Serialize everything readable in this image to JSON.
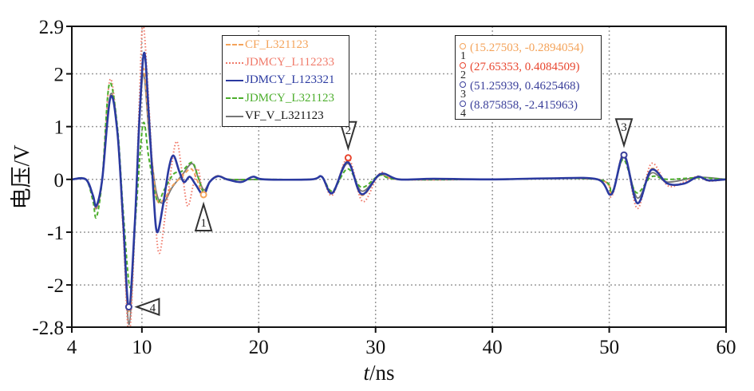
{
  "chart_data": {
    "type": "line",
    "xlabel_italic": "t",
    "xlabel_rest": "/ns",
    "ylabel": "电压/V",
    "xlim": [
      4,
      60
    ],
    "ylim": [
      -2.8,
      2.9
    ],
    "xticks": [
      4,
      10,
      20,
      30,
      40,
      50,
      60
    ],
    "yticks": [
      2.9,
      2,
      1,
      0,
      -1,
      -2,
      -2.8
    ],
    "grid": true,
    "legend_position": "top-center",
    "series": [
      {
        "name": "CF_L321123",
        "color": "#f4a35a",
        "style": "dashed",
        "points": [
          [
            4,
            0
          ],
          [
            5.2,
            0
          ],
          [
            5.8,
            -0.3
          ],
          [
            6.1,
            -0.52
          ],
          [
            6.6,
            0
          ],
          [
            7.3,
            1.58
          ],
          [
            7.9,
            0.9
          ],
          [
            8.4,
            -0.9
          ],
          [
            8.88,
            -2.5
          ],
          [
            9.4,
            -0.8
          ],
          [
            9.8,
            1.2
          ],
          [
            10.15,
            2.1
          ],
          [
            10.6,
            1.0
          ],
          [
            11.2,
            -0.3
          ],
          [
            11.8,
            -0.4
          ],
          [
            12.5,
            -0.15
          ],
          [
            13.4,
            0.05
          ],
          [
            14.2,
            0.2
          ],
          [
            14.7,
            0.0
          ],
          [
            15.27,
            -0.29
          ],
          [
            15.8,
            -0.05
          ],
          [
            16.5,
            0.07
          ],
          [
            17.3,
            0
          ],
          [
            18.5,
            -0.04
          ],
          [
            19.5,
            0.05
          ],
          [
            20.5,
            0
          ],
          [
            24.5,
            0
          ],
          [
            25.4,
            0.05
          ],
          [
            26.3,
            -0.26
          ],
          [
            27.6,
            0.35
          ],
          [
            28.8,
            -0.3
          ],
          [
            30.4,
            0.1
          ],
          [
            32,
            0
          ],
          [
            40,
            0
          ],
          [
            49,
            0
          ],
          [
            50.2,
            -0.28
          ],
          [
            51.26,
            0.45
          ],
          [
            52.4,
            -0.45
          ],
          [
            53.6,
            0.2
          ],
          [
            55,
            -0.08
          ],
          [
            56.4,
            -0.08
          ],
          [
            57.6,
            0.05
          ],
          [
            58.5,
            -0.02
          ],
          [
            60,
            0
          ]
        ]
      },
      {
        "name": "JDMCY_L112233",
        "color": "#f07a6a",
        "style": "dotted",
        "points": [
          [
            4,
            0
          ],
          [
            5.2,
            0
          ],
          [
            5.8,
            -0.3
          ],
          [
            6.1,
            -0.55
          ],
          [
            6.6,
            0
          ],
          [
            7.25,
            1.88
          ],
          [
            7.9,
            0.9
          ],
          [
            8.4,
            -1.0
          ],
          [
            8.9,
            -2.95
          ],
          [
            9.4,
            -0.9
          ],
          [
            9.8,
            1.6
          ],
          [
            10.1,
            2.95
          ],
          [
            10.6,
            1.4
          ],
          [
            11.1,
            -0.6
          ],
          [
            11.5,
            -1.4
          ],
          [
            12.1,
            -0.5
          ],
          [
            12.9,
            0.7
          ],
          [
            13.4,
            0.2
          ],
          [
            13.9,
            -0.5
          ],
          [
            14.4,
            -0.1
          ],
          [
            14.8,
            0.2
          ],
          [
            15.27,
            -0.3
          ],
          [
            15.8,
            -0.05
          ],
          [
            16.5,
            0.06
          ],
          [
            17.3,
            0
          ],
          [
            18.5,
            -0.05
          ],
          [
            19.5,
            0.05
          ],
          [
            20.5,
            0
          ],
          [
            24.5,
            0
          ],
          [
            25.4,
            0.05
          ],
          [
            26.3,
            -0.3
          ],
          [
            27.65,
            0.41
          ],
          [
            28.9,
            -0.42
          ],
          [
            30.4,
            0.12
          ],
          [
            32,
            0
          ],
          [
            40,
            0
          ],
          [
            49,
            0
          ],
          [
            50.2,
            -0.32
          ],
          [
            51.26,
            0.5
          ],
          [
            52.4,
            -0.55
          ],
          [
            53.6,
            0.3
          ],
          [
            55,
            -0.12
          ],
          [
            56.4,
            -0.05
          ],
          [
            57.6,
            0.06
          ],
          [
            58.5,
            -0.03
          ],
          [
            60,
            0
          ]
        ]
      },
      {
        "name": "JDMCY_L123321",
        "color": "#2b3aa0",
        "style": "solid",
        "points": [
          [
            4,
            0
          ],
          [
            5.2,
            0
          ],
          [
            5.8,
            -0.3
          ],
          [
            6.1,
            -0.5
          ],
          [
            6.6,
            0
          ],
          [
            7.3,
            1.55
          ],
          [
            7.9,
            0.9
          ],
          [
            8.4,
            -0.8
          ],
          [
            8.88,
            -2.42
          ],
          [
            9.4,
            -0.8
          ],
          [
            9.8,
            1.2
          ],
          [
            10.2,
            2.4
          ],
          [
            10.6,
            1.2
          ],
          [
            11,
            -0.3
          ],
          [
            11.3,
            -1.0
          ],
          [
            11.8,
            -0.5
          ],
          [
            12.3,
            0.2
          ],
          [
            12.7,
            0.45
          ],
          [
            13.2,
            0.15
          ],
          [
            13.6,
            -0.05
          ],
          [
            14.1,
            0.05
          ],
          [
            14.6,
            -0.1
          ],
          [
            15.27,
            -0.29
          ],
          [
            15.8,
            -0.05
          ],
          [
            16.5,
            0.06
          ],
          [
            17.3,
            0
          ],
          [
            18.5,
            -0.05
          ],
          [
            19.5,
            0.05
          ],
          [
            20.5,
            0
          ],
          [
            24.5,
            0
          ],
          [
            25.4,
            0.05
          ],
          [
            26.3,
            -0.26
          ],
          [
            27.6,
            0.33
          ],
          [
            28.8,
            -0.28
          ],
          [
            30.4,
            0.1
          ],
          [
            32,
            0
          ],
          [
            35,
            0.01
          ],
          [
            40,
            0
          ],
          [
            45,
            0.02
          ],
          [
            49,
            0
          ],
          [
            50.2,
            -0.28
          ],
          [
            51.26,
            0.46
          ],
          [
            52.4,
            -0.45
          ],
          [
            53.6,
            0.18
          ],
          [
            55,
            -0.08
          ],
          [
            56.4,
            -0.08
          ],
          [
            57.6,
            0.05
          ],
          [
            58.5,
            -0.02
          ],
          [
            60,
            0
          ]
        ]
      },
      {
        "name": "JDMCY_L321123",
        "color": "#4cae2c",
        "style": "dashed",
        "points": [
          [
            4,
            0
          ],
          [
            5.2,
            0
          ],
          [
            5.8,
            -0.4
          ],
          [
            6.1,
            -0.72
          ],
          [
            6.6,
            0
          ],
          [
            7.2,
            1.8
          ],
          [
            7.9,
            1.0
          ],
          [
            8.4,
            -0.6
          ],
          [
            9.0,
            -2.05
          ],
          [
            9.5,
            -0.6
          ],
          [
            10.1,
            1.05
          ],
          [
            10.6,
            0.4
          ],
          [
            11.3,
            -0.4
          ],
          [
            11.9,
            -0.2
          ],
          [
            12.7,
            0.1
          ],
          [
            13.4,
            0.15
          ],
          [
            14.3,
            0.32
          ],
          [
            14.8,
            0.05
          ],
          [
            15.3,
            -0.25
          ],
          [
            15.8,
            -0.05
          ],
          [
            16.5,
            0.06
          ],
          [
            17.5,
            0
          ],
          [
            20.5,
            0
          ],
          [
            24.5,
            0
          ],
          [
            25.4,
            0.05
          ],
          [
            26.3,
            -0.22
          ],
          [
            27.6,
            0.2
          ],
          [
            28.8,
            -0.15
          ],
          [
            30.4,
            0.08
          ],
          [
            32,
            0
          ],
          [
            40,
            0
          ],
          [
            49,
            0
          ],
          [
            50.2,
            -0.25
          ],
          [
            51.2,
            0.38
          ],
          [
            52.3,
            -0.25
          ],
          [
            53.6,
            0.05
          ],
          [
            55,
            0.0
          ],
          [
            57.6,
            0.03
          ],
          [
            60,
            0
          ]
        ]
      },
      {
        "name": "VF_V_L321123",
        "color": "#777777",
        "style": "solid",
        "points": [
          [
            4,
            0
          ],
          [
            5.2,
            0
          ],
          [
            5.8,
            -0.3
          ],
          [
            6.1,
            -0.55
          ],
          [
            6.6,
            0
          ],
          [
            7.3,
            1.6
          ],
          [
            7.9,
            0.9
          ],
          [
            8.4,
            -0.9
          ],
          [
            8.9,
            -2.75
          ],
          [
            9.4,
            -0.8
          ],
          [
            9.8,
            1.1
          ],
          [
            10.15,
            2.0
          ],
          [
            10.6,
            0.9
          ],
          [
            11.2,
            -0.2
          ],
          [
            11.8,
            -0.45
          ],
          [
            12.6,
            -0.15
          ],
          [
            13.5,
            0.1
          ],
          [
            14.3,
            0.3
          ],
          [
            14.8,
            0.05
          ],
          [
            15.3,
            -0.2
          ],
          [
            15.8,
            -0.05
          ],
          [
            16.5,
            0.06
          ],
          [
            17.5,
            0
          ],
          [
            20.5,
            0
          ],
          [
            24.5,
            0
          ],
          [
            25.4,
            0.05
          ],
          [
            26.3,
            -0.25
          ],
          [
            27.6,
            0.3
          ],
          [
            28.8,
            -0.22
          ],
          [
            30.4,
            0.08
          ],
          [
            32,
            0
          ],
          [
            40,
            0
          ],
          [
            49,
            0
          ],
          [
            50.2,
            -0.27
          ],
          [
            51.26,
            0.42
          ],
          [
            52.4,
            -0.35
          ],
          [
            53.6,
            0.12
          ],
          [
            55,
            -0.05
          ],
          [
            57.6,
            0.04
          ],
          [
            60,
            0
          ]
        ]
      }
    ],
    "datatips": [
      {
        "label": "1",
        "text": "(15.27503, -0.2894054)",
        "x": 15.27503,
        "y": -0.2894054,
        "color": "#f4a35a",
        "pointer": "up"
      },
      {
        "label": "2",
        "text": "(27.65353, 0.4084509)",
        "x": 27.65353,
        "y": 0.4084509,
        "color": "#e8452e",
        "pointer": "down"
      },
      {
        "label": "3",
        "text": "(51.25939, 0.4625468)",
        "x": 51.25939,
        "y": 0.4625468,
        "color": "#3a3f9a",
        "pointer": "down"
      },
      {
        "label": "4",
        "text": "(8.875858, -2.415963)",
        "x": 8.875858,
        "y": -2.415963,
        "color": "#3a3f9a",
        "pointer": "left"
      }
    ]
  }
}
